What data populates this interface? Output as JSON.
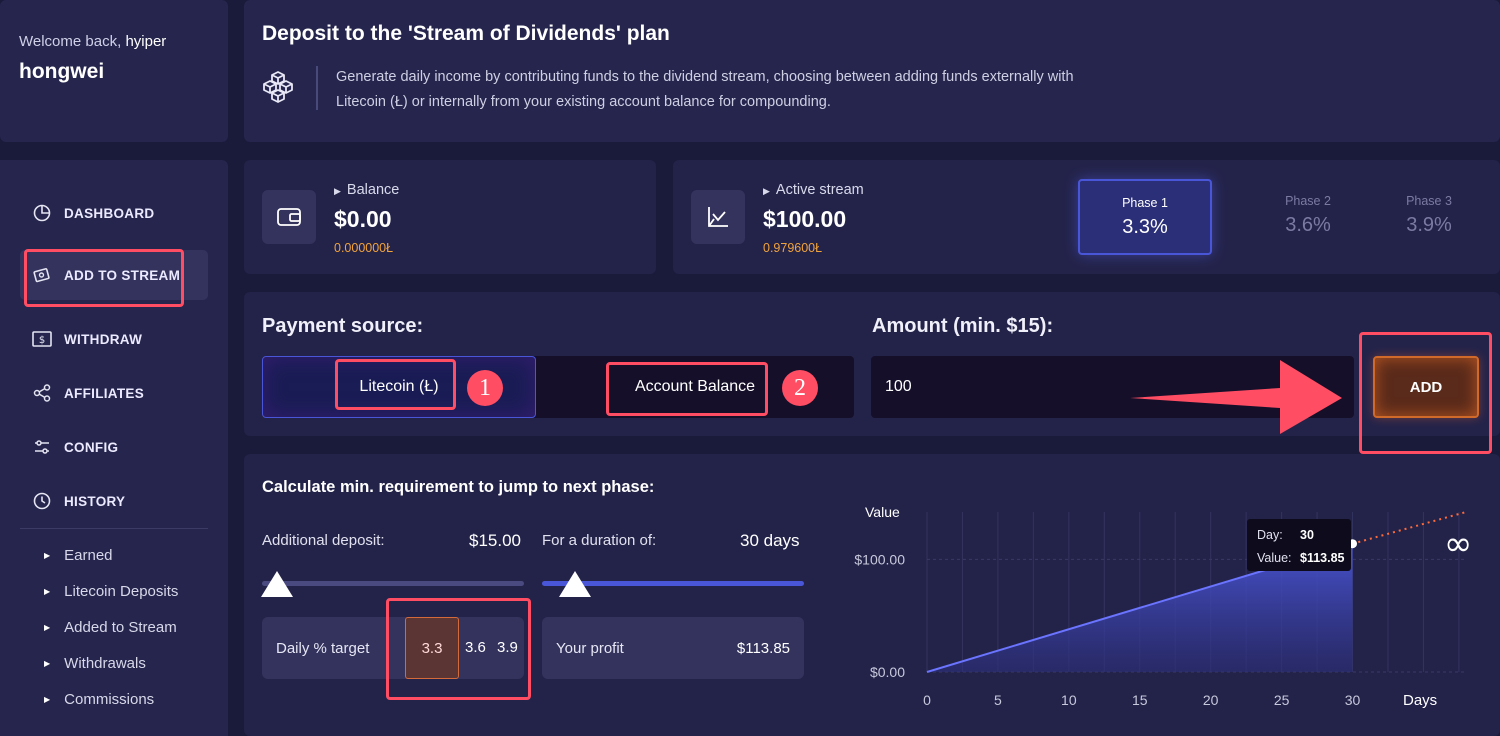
{
  "welcome": {
    "prefix": "Welcome back,",
    "name_inline": "hyiper",
    "username": "hongwei"
  },
  "nav": [
    {
      "label": "DASHBOARD",
      "icon": "pie-chart-icon"
    },
    {
      "label": "ADD TO STREAM",
      "icon": "add-stream-icon",
      "active": true
    },
    {
      "label": "WITHDRAW",
      "icon": "dollar-bill-icon"
    },
    {
      "label": "AFFILIATES",
      "icon": "share-icon"
    },
    {
      "label": "CONFIG",
      "icon": "sliders-icon"
    },
    {
      "label": "HISTORY",
      "icon": "clock-icon"
    }
  ],
  "history_items": [
    "Earned",
    "Litecoin Deposits",
    "Added to Stream",
    "Withdrawals",
    "Commissions"
  ],
  "header": {
    "title": "Deposit to the 'Stream of Dividends' plan",
    "description": "Generate daily income by contributing funds to the dividend stream, choosing between adding funds externally with Litecoin (Ł) or internally from your existing account balance for compounding."
  },
  "balance": {
    "label": "Balance",
    "value": "$0.00",
    "ltc": "0.000000Ł"
  },
  "stream": {
    "label": "Active stream",
    "value": "$100.00",
    "ltc": "0.979600Ł"
  },
  "phases": [
    {
      "label": "Phase 1",
      "value": "3.3%",
      "active": true
    },
    {
      "label": "Phase 2",
      "value": "3.6%"
    },
    {
      "label": "Phase 3",
      "value": "3.9%"
    }
  ],
  "payment": {
    "source_label": "Payment source:",
    "option1": "Litecoin (Ł)",
    "option2": "Account Balance",
    "marker1": "1",
    "marker2": "2",
    "amount_label": "Amount (min. $15):",
    "amount_value": "100",
    "add_label": "ADD"
  },
  "calc": {
    "title": "Calculate min. requirement to jump to next phase:",
    "deposit_label": "Additional deposit:",
    "deposit_value": "$15.00",
    "duration_label": "For a duration of:",
    "duration_value": "30 days",
    "target_label": "Daily % target",
    "targets": [
      "3.3",
      "3.6",
      "3.9"
    ],
    "profit_label": "Your profit",
    "profit_value": "$113.85"
  },
  "colors": {
    "accent": "#4a56d8",
    "highlight": "#ff4d63",
    "orange": "#f2a33a",
    "bg": "#1a1a3a",
    "panel": "#23234a"
  },
  "chart_data": {
    "type": "area",
    "title": "",
    "ylabel": "Value",
    "xlabel": "Days",
    "x_ticks": [
      0,
      5,
      10,
      15,
      20,
      25,
      30
    ],
    "y_ticks": [
      "$0.00",
      "$100.00"
    ],
    "xlim": [
      0,
      38
    ],
    "ylim": [
      0,
      142
    ],
    "series": [
      {
        "x": [
          0,
          30
        ],
        "y": [
          0,
          113.85
        ]
      }
    ],
    "projection": {
      "x": [
        30,
        38
      ],
      "y": [
        113.85,
        142
      ],
      "style": "dotted"
    },
    "tooltip": {
      "day_label": "Day:",
      "day": "30",
      "value_label": "Value:",
      "value": "$113.85"
    },
    "infinity_label": "∞",
    "grid": true
  }
}
